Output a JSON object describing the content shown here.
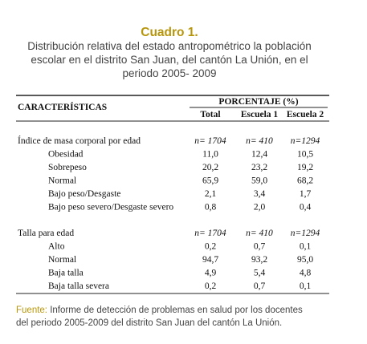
{
  "title": "Cuadro 1.",
  "subtitle": [
    "Distribución relativa del estado antropométrico la población",
    "escolar en el distrito San Juan, del cantón La Unión, en el",
    "periodo 2005- 2009"
  ],
  "table": {
    "header": "CARACTERÍSTICAS",
    "group_header": "PORCENTAJE (%)",
    "columns": [
      "Total",
      "Escuela 1",
      "Escuela 2"
    ],
    "sections": [
      {
        "label": "Índice de masa corporal por edad",
        "n": [
          "n= 1704",
          "n= 410",
          "n=1294"
        ],
        "rows": [
          [
            "Obesidad",
            "11,0",
            "12,4",
            "10,5"
          ],
          [
            "Sobrepeso",
            "20,2",
            "23,2",
            "19,2"
          ],
          [
            "Normal",
            "65,9",
            "59,0",
            "68,2"
          ],
          [
            "Bajo peso/Desgaste",
            "2,1",
            "3,4",
            "1,7"
          ],
          [
            "Bajo peso severo/Desgaste severo",
            "0,8",
            "2,0",
            "0,4"
          ]
        ]
      },
      {
        "label": "Talla para edad",
        "n": [
          "n= 1704",
          "n= 410",
          "n=1294"
        ],
        "rows": [
          [
            "Alto",
            "0,2",
            "0,7",
            "0,1"
          ],
          [
            "Normal",
            "94,7",
            "93,2",
            "95,0"
          ],
          [
            "Baja talla",
            "4,9",
            "5,4",
            "4,8"
          ],
          [
            "Baja talla severa",
            "0,2",
            "0,7",
            "0,1"
          ]
        ]
      }
    ]
  },
  "footnote": {
    "label": "Fuente:",
    "text": [
      "Informe de detección de problemas en salud por los docentes",
      "del periodo 2005-2009 del distrito San Juan del cantón La Unión."
    ]
  }
}
